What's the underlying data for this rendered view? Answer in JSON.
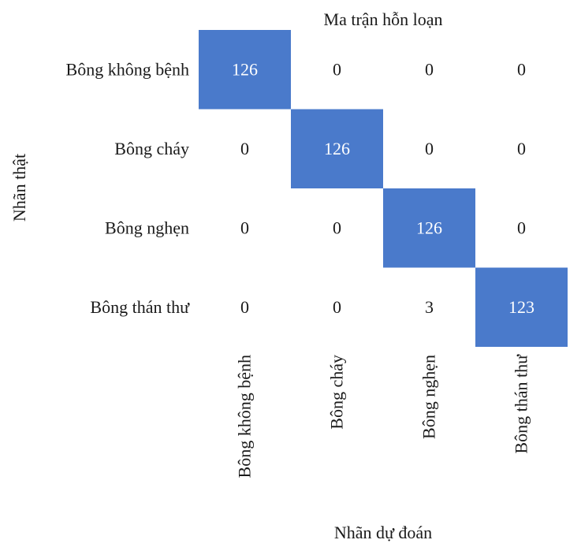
{
  "chart_data": {
    "type": "heatmap",
    "title": "Ma trận hỗn loạn",
    "xlabel": "Nhãn dự đoán",
    "ylabel": "Nhãn thật",
    "row_labels": [
      "Bông không bệnh",
      "Bông cháy",
      "Bông nghẹn",
      "Bông thán thư"
    ],
    "col_labels": [
      "Bông không bệnh",
      "Bông cháy",
      "Bông nghẹn",
      "Bông thán thư"
    ],
    "values": [
      [
        126,
        0,
        0,
        0
      ],
      [
        0,
        126,
        0,
        0
      ],
      [
        0,
        0,
        126,
        0
      ],
      [
        0,
        0,
        3,
        123
      ]
    ],
    "highlight_color": "#4a7acb",
    "highlight_text_color": "#ffffff",
    "text_color": "#1a1a1a"
  }
}
